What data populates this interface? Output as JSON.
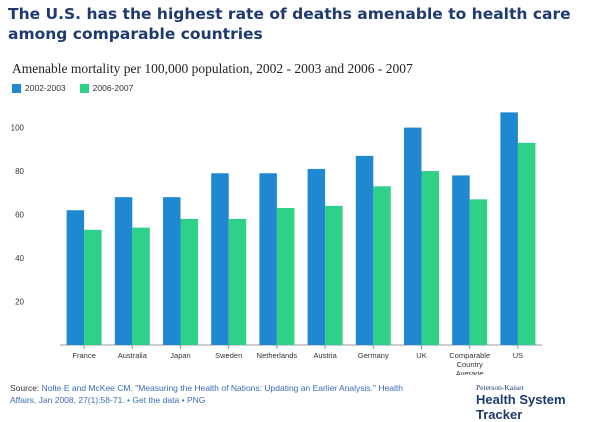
{
  "header": {
    "title": "The U.S. has the highest rate of deaths amenable to health care among comparable countries"
  },
  "footer": {
    "source_label": "Source:",
    "source_text": "Nolte E and McKee CM. \"Measuring the Health of Nations: Updating an Earlier Analysis.\" Health Affairs, Jan 2008, 27(1):58-71.",
    "sep": "•",
    "get_data": "Get the data",
    "png": "PNG"
  },
  "brand": {
    "small": "Peterson-Kaiser",
    "big": "Health System Tracker"
  },
  "chart_data": {
    "type": "bar",
    "title": "Amenable mortality per 100,000 population, 2002 - 2003 and 2006 - 2007",
    "categories": [
      "France",
      "Australia",
      "Japan",
      "Sweden",
      "Netherlands",
      "Austria",
      "Germany",
      "UK",
      "Comparable Country Average",
      "US"
    ],
    "series": [
      {
        "name": "2002-2003",
        "color": "#1f88d0",
        "values": [
          62,
          68,
          68,
          79,
          79,
          81,
          87,
          100,
          78,
          107
        ]
      },
      {
        "name": "2006-2007",
        "color": "#2fd088",
        "values": [
          53,
          54,
          58,
          58,
          63,
          64,
          73,
          80,
          67,
          93
        ]
      }
    ],
    "yticks": [
      20,
      40,
      60,
      80,
      100
    ],
    "ylim": [
      0,
      115
    ],
    "grid": false,
    "legend": "top-left"
  }
}
